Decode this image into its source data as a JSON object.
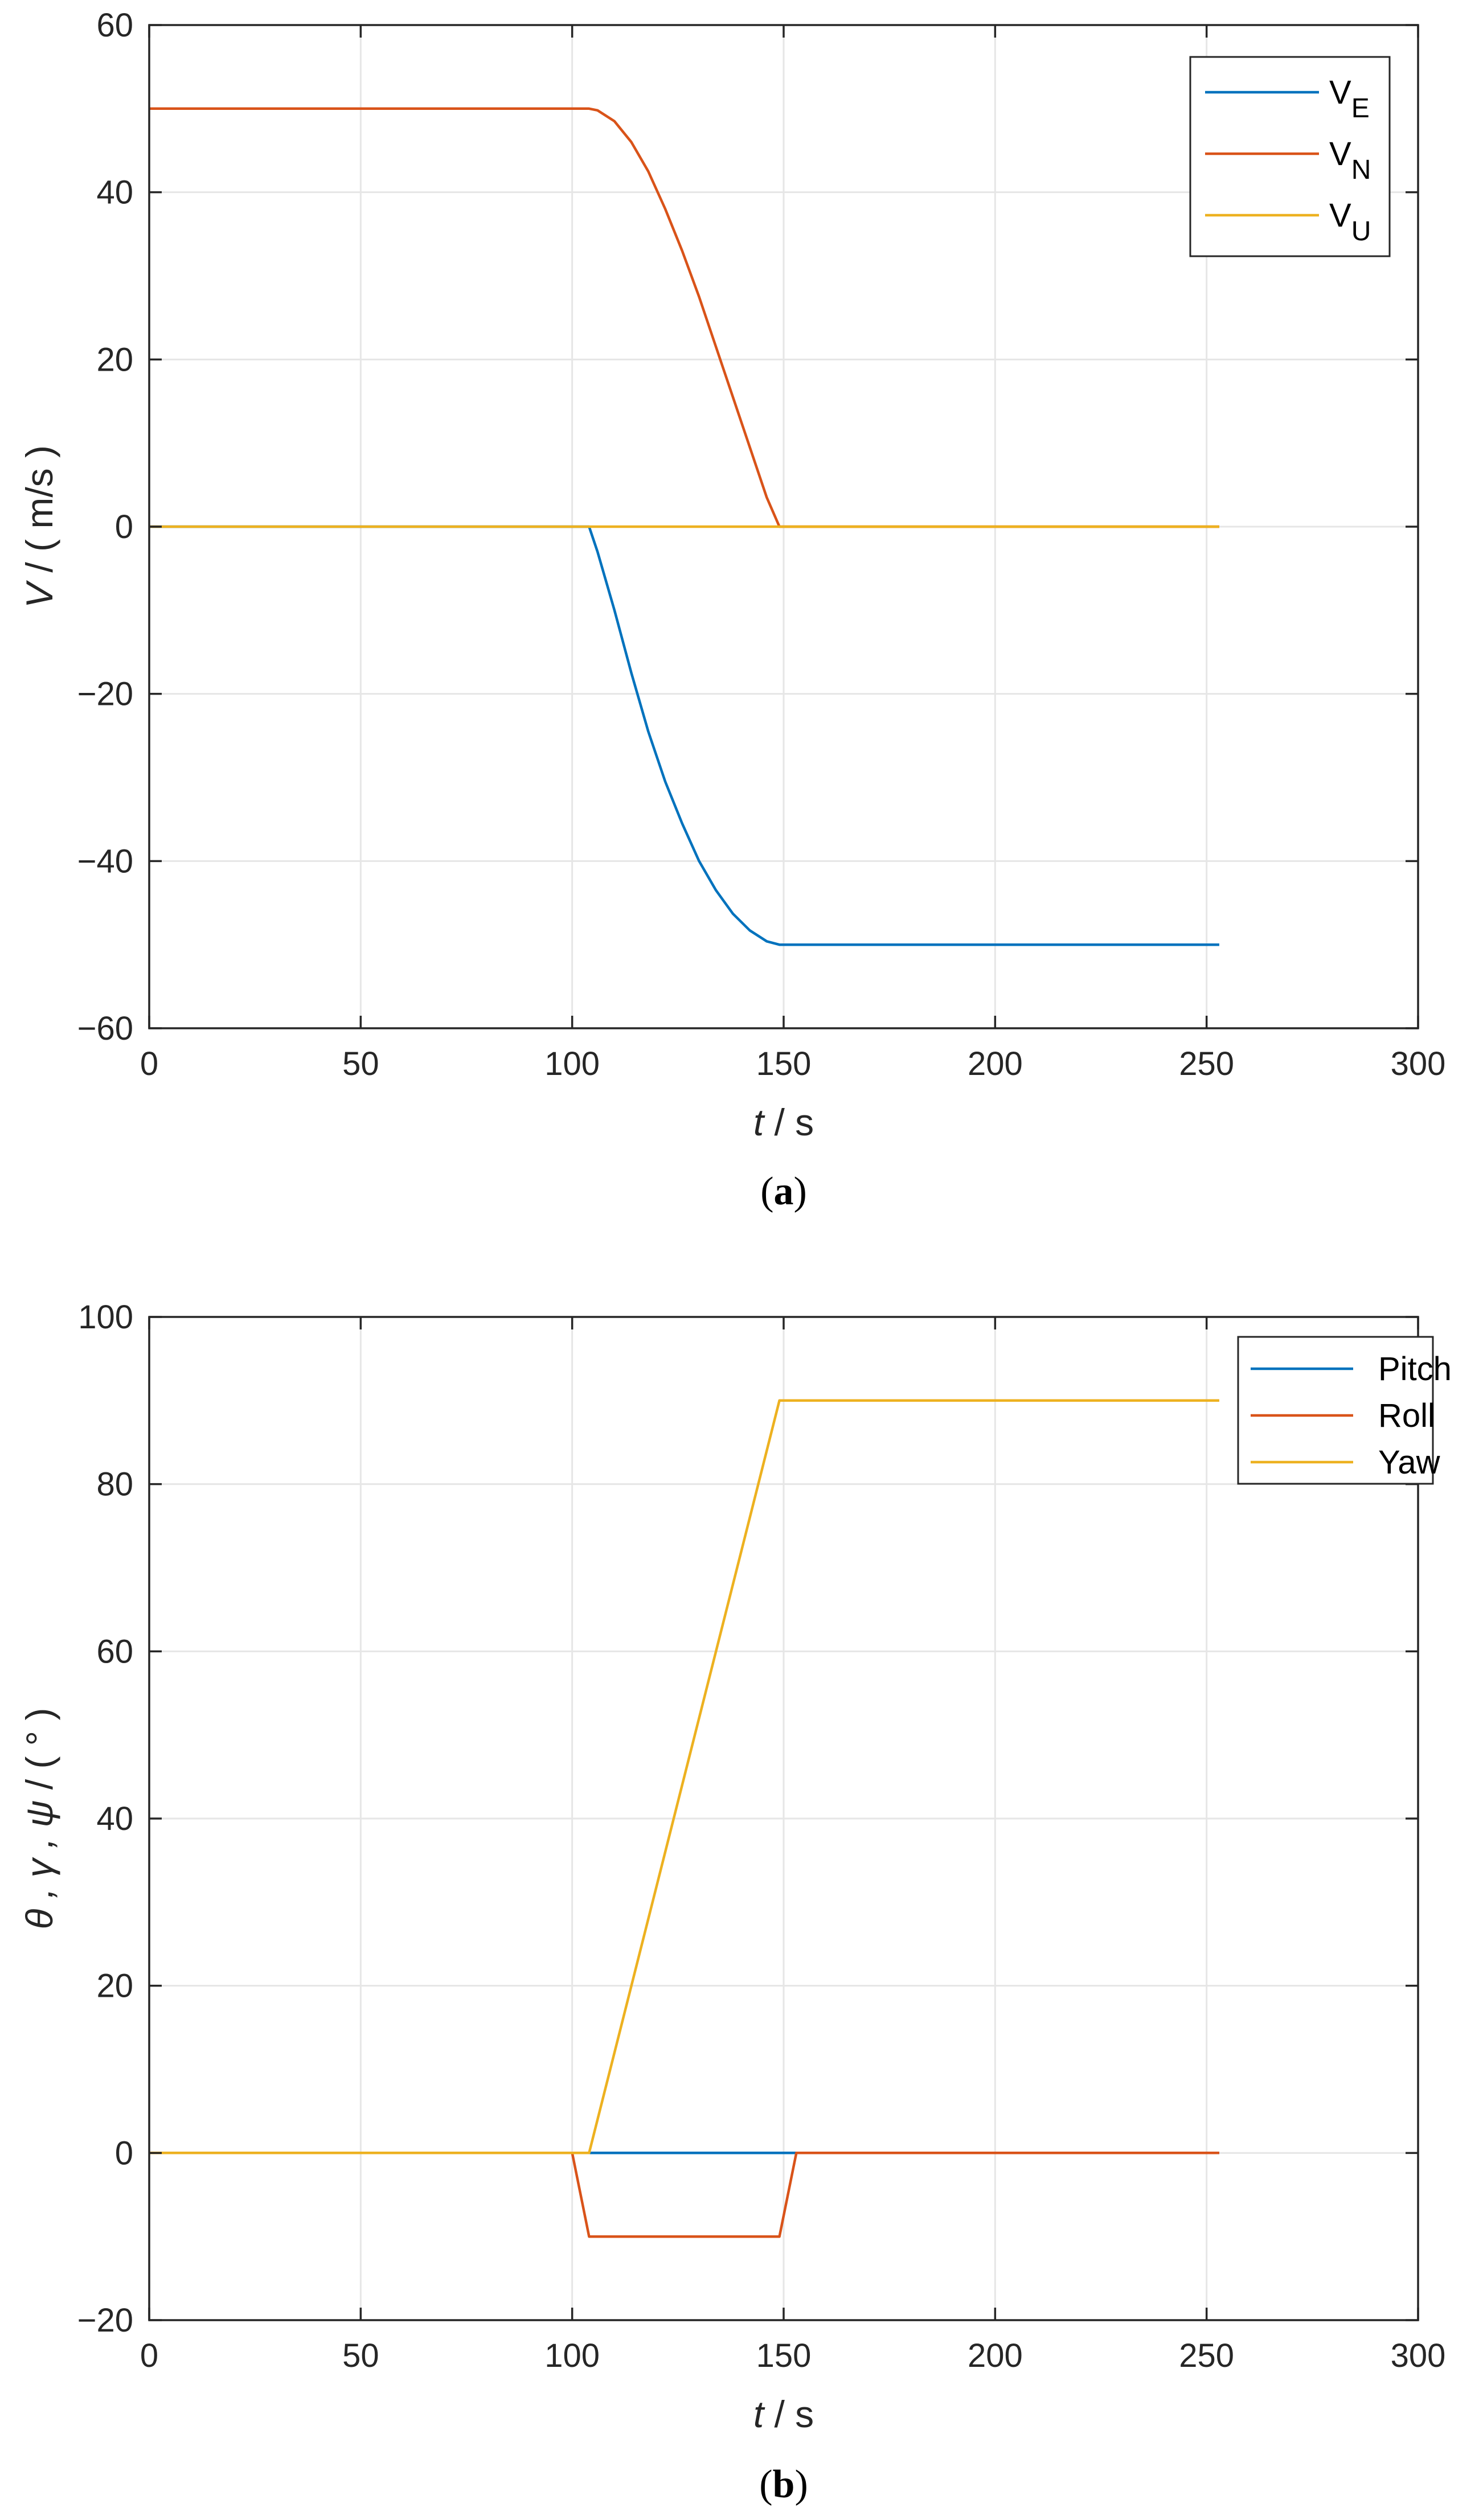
{
  "chart_data": [
    {
      "type": "line",
      "title": "",
      "caption": {
        "open": "(",
        "letter": "a",
        "close": ")"
      },
      "xlabel": {
        "var": "t",
        "unit": "  / s"
      },
      "ylabel": {
        "var": "V",
        "unit": " / ( m/s )"
      },
      "xlim": [
        0,
        300
      ],
      "ylim": [
        -60,
        60
      ],
      "xticks": [
        0,
        50,
        100,
        150,
        200,
        250,
        300
      ],
      "yticks": [
        -60,
        -40,
        -20,
        0,
        20,
        40,
        60
      ],
      "grid": true,
      "legend_position": "top-right",
      "series": [
        {
          "name": "V",
          "subscript": "E",
          "color": "#0072BD",
          "x": [
            0,
            104,
            106,
            110,
            114,
            118,
            122,
            126,
            130,
            134,
            138,
            142,
            146,
            149,
            152,
            253
          ],
          "y": [
            0,
            0,
            -3,
            -10,
            -17.5,
            -24.5,
            -30.5,
            -35.5,
            -40,
            -43.5,
            -46.3,
            -48.3,
            -49.6,
            -50,
            -50,
            -50
          ]
        },
        {
          "name": "V",
          "subscript": "N",
          "color": "#D95319",
          "x": [
            0,
            104,
            106,
            110,
            114,
            118,
            122,
            126,
            130,
            134,
            138,
            142,
            146,
            149,
            253
          ],
          "y": [
            50,
            50,
            49.8,
            48.5,
            46,
            42.5,
            38,
            33,
            27.5,
            21.5,
            15.5,
            9.5,
            3.5,
            0,
            0
          ]
        },
        {
          "name": "V",
          "subscript": "U",
          "color": "#EDB120",
          "x": [
            0,
            253
          ],
          "y": [
            0,
            0
          ]
        }
      ]
    },
    {
      "type": "line",
      "title": "",
      "caption": {
        "open": "(",
        "letter": "b",
        "close": ")"
      },
      "xlabel": {
        "var": "t",
        "unit": "  / s"
      },
      "ylabel": {
        "var": "θ , γ , ψ",
        "unit": "  / ( ° )"
      },
      "xlim": [
        0,
        300
      ],
      "ylim": [
        -20,
        100
      ],
      "xticks": [
        0,
        50,
        100,
        150,
        200,
        250,
        300
      ],
      "yticks": [
        -20,
        0,
        20,
        40,
        60,
        80,
        100
      ],
      "grid": true,
      "legend_position": "top-right",
      "series": [
        {
          "name": "Pitch",
          "subscript": "",
          "color": "#0072BD",
          "x": [
            0,
            253
          ],
          "y": [
            0,
            0
          ]
        },
        {
          "name": "Roll",
          "subscript": "",
          "color": "#D95319",
          "x": [
            0,
            100,
            104,
            149,
            153,
            253
          ],
          "y": [
            0,
            0,
            -10,
            -10,
            0,
            0
          ]
        },
        {
          "name": "Yaw",
          "subscript": "",
          "color": "#EDB120",
          "x": [
            0,
            104,
            149,
            253
          ],
          "y": [
            0,
            0,
            90,
            90
          ]
        }
      ]
    }
  ]
}
